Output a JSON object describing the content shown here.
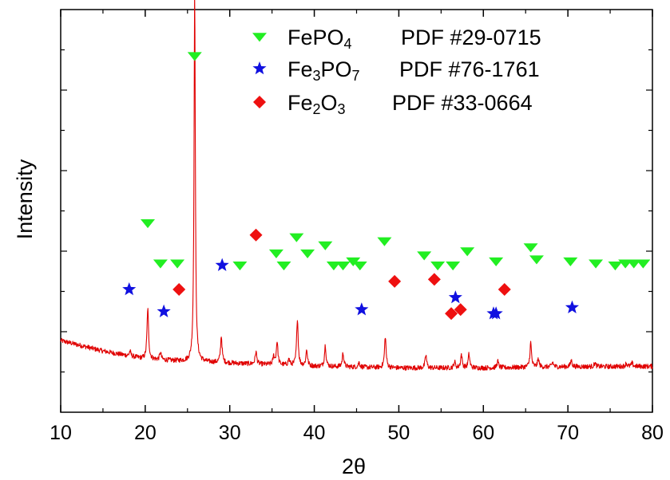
{
  "chart_data": {
    "type": "line",
    "xlabel": "2θ",
    "ylabel": "Intensity",
    "xlim": [
      10,
      80
    ],
    "ylim": [
      0,
      100
    ],
    "x_ticks": [
      10,
      20,
      30,
      40,
      50,
      60,
      70,
      80
    ],
    "y_tick_labels_shown": false,
    "colors": {
      "pattern": "#e00000",
      "FePO4": "#22ee22",
      "Fe3PO7": "#1010e0",
      "Fe2O3": "#ee1010"
    },
    "series": [
      {
        "name": "",
        "baseline": [
          [
            10,
            17.8
          ],
          [
            15,
            15.2
          ],
          [
            20,
            13.2
          ],
          [
            25,
            12.6
          ],
          [
            30,
            12.2
          ],
          [
            40,
            11.4
          ],
          [
            50,
            11.0
          ],
          [
            60,
            11.0
          ],
          [
            70,
            11.3
          ],
          [
            80,
            11.4
          ]
        ],
        "peaks": [
          {
            "x": 18.2,
            "height": 1.2
          },
          {
            "x": 20.3,
            "height": 12.6
          },
          {
            "x": 21.8,
            "height": 1.8
          },
          {
            "x": 25.85,
            "height": 92.3
          },
          {
            "x": 29.0,
            "height": 6.6
          },
          {
            "x": 33.1,
            "height": 3.1
          },
          {
            "x": 35.2,
            "height": 2.0
          },
          {
            "x": 35.6,
            "height": 5.8
          },
          {
            "x": 37.0,
            "height": 1.5
          },
          {
            "x": 38.0,
            "height": 11.7
          },
          {
            "x": 39.1,
            "height": 4.0
          },
          {
            "x": 41.3,
            "height": 5.3
          },
          {
            "x": 43.4,
            "height": 3.5
          },
          {
            "x": 45.3,
            "height": 1.2
          },
          {
            "x": 48.4,
            "height": 7.8
          },
          {
            "x": 53.2,
            "height": 3.2
          },
          {
            "x": 56.6,
            "height": 1.5
          },
          {
            "x": 57.4,
            "height": 3.3
          },
          {
            "x": 58.3,
            "height": 3.4
          },
          {
            "x": 61.7,
            "height": 1.6
          },
          {
            "x": 65.6,
            "height": 6.1
          },
          {
            "x": 66.5,
            "height": 2.0
          },
          {
            "x": 68.2,
            "height": 1.2
          },
          {
            "x": 70.4,
            "height": 1.6
          },
          {
            "x": 73.2,
            "height": 0.9
          },
          {
            "x": 76.9,
            "height": 0.8
          },
          {
            "x": 77.6,
            "height": 0.8
          }
        ]
      }
    ],
    "markers": [
      {
        "name": "FePO4",
        "label_main": "FePO",
        "label_sub": "4",
        "label_rest": "",
        "pdf": "PDF #29-0715",
        "shape": "triangle-down",
        "points": [
          [
            20.3,
            47
          ],
          [
            21.8,
            37
          ],
          [
            23.8,
            37
          ],
          [
            25.85,
            88.5
          ],
          [
            31.2,
            36.5
          ],
          [
            35.5,
            39.5
          ],
          [
            36.4,
            36.5
          ],
          [
            37.9,
            43.5
          ],
          [
            39.2,
            39.5
          ],
          [
            41.3,
            41.5
          ],
          [
            42.3,
            36.5
          ],
          [
            43.4,
            36.5
          ],
          [
            44.6,
            37.5
          ],
          [
            45.4,
            36.5
          ],
          [
            48.3,
            42.5
          ],
          [
            53.0,
            39
          ],
          [
            54.6,
            36.5
          ],
          [
            56.4,
            36.5
          ],
          [
            58.1,
            40
          ],
          [
            61.5,
            37.5
          ],
          [
            65.6,
            41
          ],
          [
            66.3,
            38
          ],
          [
            70.3,
            37.5
          ],
          [
            73.3,
            37
          ],
          [
            75.6,
            36.5
          ],
          [
            76.8,
            37
          ],
          [
            77.8,
            37
          ],
          [
            78.9,
            37
          ]
        ]
      },
      {
        "name": "Fe3PO7",
        "label_main": "Fe",
        "label_sub": "3",
        "label_rest": "PO",
        "label_sub2": "7",
        "pdf": "PDF #76-1761",
        "shape": "star",
        "points": [
          [
            18.1,
            30.5
          ],
          [
            22.2,
            25
          ],
          [
            29.1,
            36.5
          ],
          [
            45.6,
            25.5
          ],
          [
            56.7,
            28.5
          ],
          [
            61.2,
            24.5
          ],
          [
            61.5,
            24.5
          ],
          [
            70.5,
            26
          ]
        ]
      },
      {
        "name": "Fe2O3",
        "label_main": "Fe",
        "label_sub": "2",
        "label_rest": "O",
        "label_sub2": "3",
        "pdf": "PDF #33-0664",
        "shape": "diamond",
        "points": [
          [
            24.0,
            30.5
          ],
          [
            33.1,
            44
          ],
          [
            49.5,
            32.5
          ],
          [
            54.2,
            33
          ],
          [
            56.2,
            24.5
          ],
          [
            57.3,
            25.5
          ],
          [
            62.5,
            30.5
          ]
        ]
      }
    ],
    "legend_placement": "top-right",
    "grid": false
  }
}
